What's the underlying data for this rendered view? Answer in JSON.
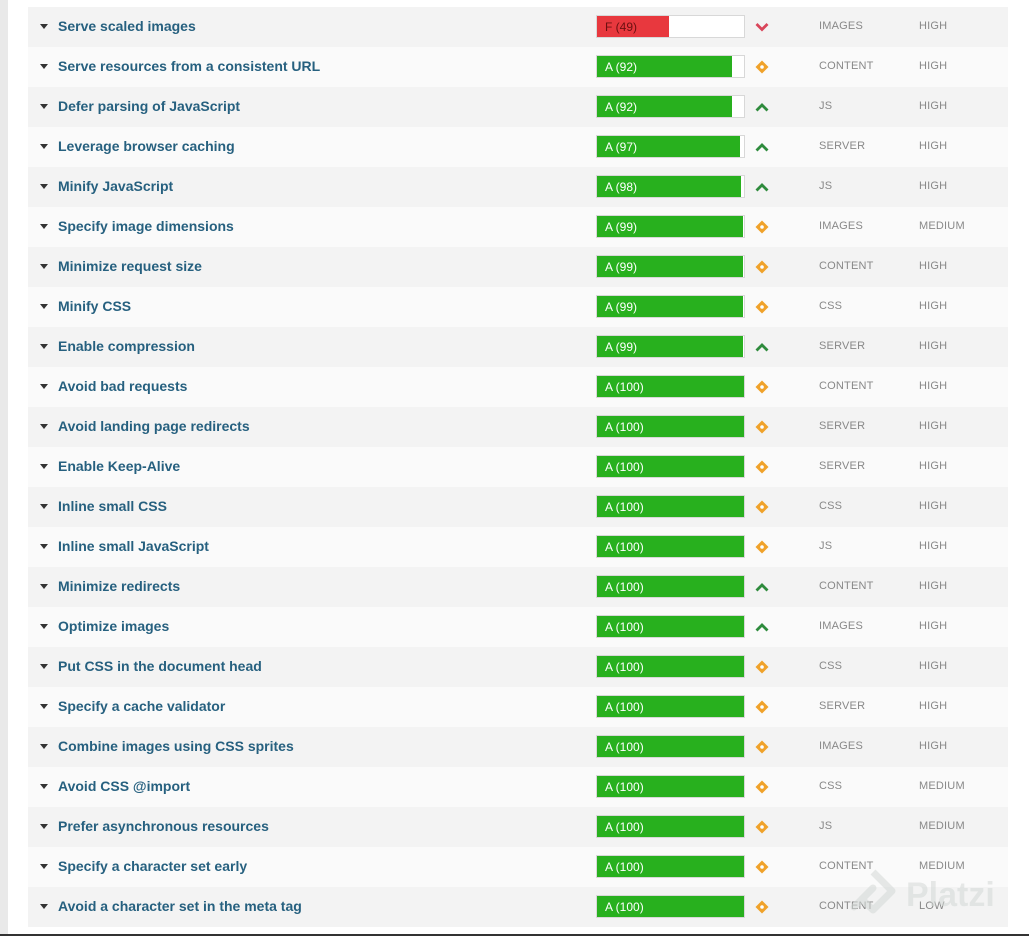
{
  "colors": {
    "grade_a": "#28b01e",
    "grade_f": "#e8383e",
    "trend_up": "#2e8b3c",
    "trend_down": "#d9455a",
    "trend_neutral": "#f0a22a"
  },
  "rows": [
    {
      "name": "Serve scaled images",
      "grade": "F (49)",
      "score": 49,
      "trend": "down",
      "category": "IMAGES",
      "priority": "HIGH"
    },
    {
      "name": "Serve resources from a consistent URL",
      "grade": "A (92)",
      "score": 92,
      "trend": "neutral",
      "category": "CONTENT",
      "priority": "HIGH"
    },
    {
      "name": "Defer parsing of JavaScript",
      "grade": "A (92)",
      "score": 92,
      "trend": "up",
      "category": "JS",
      "priority": "HIGH"
    },
    {
      "name": "Leverage browser caching",
      "grade": "A (97)",
      "score": 97,
      "trend": "up",
      "category": "SERVER",
      "priority": "HIGH"
    },
    {
      "name": "Minify JavaScript",
      "grade": "A (98)",
      "score": 98,
      "trend": "up",
      "category": "JS",
      "priority": "HIGH"
    },
    {
      "name": "Specify image dimensions",
      "grade": "A (99)",
      "score": 99,
      "trend": "neutral",
      "category": "IMAGES",
      "priority": "MEDIUM"
    },
    {
      "name": "Minimize request size",
      "grade": "A (99)",
      "score": 99,
      "trend": "neutral",
      "category": "CONTENT",
      "priority": "HIGH"
    },
    {
      "name": "Minify CSS",
      "grade": "A (99)",
      "score": 99,
      "trend": "neutral",
      "category": "CSS",
      "priority": "HIGH"
    },
    {
      "name": "Enable compression",
      "grade": "A (99)",
      "score": 99,
      "trend": "up",
      "category": "SERVER",
      "priority": "HIGH"
    },
    {
      "name": "Avoid bad requests",
      "grade": "A (100)",
      "score": 100,
      "trend": "neutral",
      "category": "CONTENT",
      "priority": "HIGH"
    },
    {
      "name": "Avoid landing page redirects",
      "grade": "A (100)",
      "score": 100,
      "trend": "neutral",
      "category": "SERVER",
      "priority": "HIGH"
    },
    {
      "name": "Enable Keep-Alive",
      "grade": "A (100)",
      "score": 100,
      "trend": "neutral",
      "category": "SERVER",
      "priority": "HIGH"
    },
    {
      "name": "Inline small CSS",
      "grade": "A (100)",
      "score": 100,
      "trend": "neutral",
      "category": "CSS",
      "priority": "HIGH"
    },
    {
      "name": "Inline small JavaScript",
      "grade": "A (100)",
      "score": 100,
      "trend": "neutral",
      "category": "JS",
      "priority": "HIGH"
    },
    {
      "name": "Minimize redirects",
      "grade": "A (100)",
      "score": 100,
      "trend": "up",
      "category": "CONTENT",
      "priority": "HIGH"
    },
    {
      "name": "Optimize images",
      "grade": "A (100)",
      "score": 100,
      "trend": "up",
      "category": "IMAGES",
      "priority": "HIGH"
    },
    {
      "name": "Put CSS in the document head",
      "grade": "A (100)",
      "score": 100,
      "trend": "neutral",
      "category": "CSS",
      "priority": "HIGH"
    },
    {
      "name": "Specify a cache validator",
      "grade": "A (100)",
      "score": 100,
      "trend": "neutral",
      "category": "SERVER",
      "priority": "HIGH"
    },
    {
      "name": "Combine images using CSS sprites",
      "grade": "A (100)",
      "score": 100,
      "trend": "neutral",
      "category": "IMAGES",
      "priority": "HIGH"
    },
    {
      "name": "Avoid CSS @import",
      "grade": "A (100)",
      "score": 100,
      "trend": "neutral",
      "category": "CSS",
      "priority": "MEDIUM"
    },
    {
      "name": "Prefer asynchronous resources",
      "grade": "A (100)",
      "score": 100,
      "trend": "neutral",
      "category": "JS",
      "priority": "MEDIUM"
    },
    {
      "name": "Specify a character set early",
      "grade": "A (100)",
      "score": 100,
      "trend": "neutral",
      "category": "CONTENT",
      "priority": "MEDIUM"
    },
    {
      "name": "Avoid a character set in the meta tag",
      "grade": "A (100)",
      "score": 100,
      "trend": "neutral",
      "category": "CONTENT",
      "priority": "LOW"
    }
  ],
  "watermark": {
    "text": "Platzi"
  }
}
